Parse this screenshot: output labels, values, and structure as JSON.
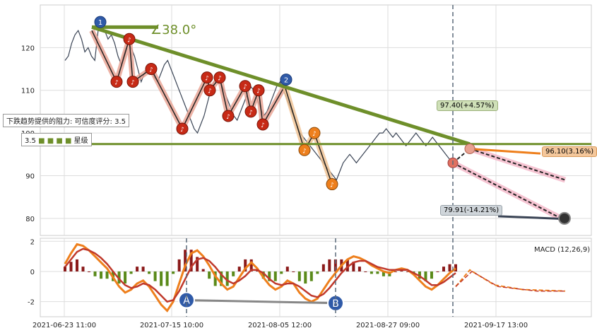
{
  "chart_data": {
    "type": "line",
    "main_panel": {
      "y_ticks": [
        80,
        90,
        100,
        110,
        120
      ],
      "ylim": [
        76,
        130
      ],
      "price_series_y": [
        117,
        118,
        121,
        123,
        124,
        122,
        119,
        120,
        118,
        117,
        124,
        125,
        124,
        122,
        123,
        121,
        118,
        116,
        119,
        121,
        120,
        118,
        115,
        112,
        114,
        116,
        115,
        113,
        112,
        114,
        116,
        117,
        115,
        113,
        111,
        109,
        107,
        105,
        103,
        101,
        100,
        102,
        104,
        107,
        110,
        112,
        113,
        112,
        110,
        108,
        106,
        104,
        103,
        105,
        107,
        109,
        111,
        110,
        108,
        106,
        104,
        105,
        107,
        109,
        111,
        112,
        110,
        108,
        106,
        104,
        102,
        100,
        99,
        98,
        97,
        96,
        95,
        94,
        93,
        92,
        91,
        90,
        89,
        91,
        93,
        94,
        95,
        94,
        93,
        94,
        95,
        96,
        97,
        98,
        99,
        100,
        100,
        101,
        100,
        99,
        100,
        99,
        98,
        97,
        98,
        99,
        100,
        99,
        98,
        97,
        98,
        99,
        98,
        97,
        96,
        95,
        94,
        93,
        94
      ],
      "trend_lines": [
        {
          "from": [
            0.06,
            124.5
          ],
          "to": [
            0.74,
            97.4
          ],
          "color": "#6e8f2a"
        },
        {
          "from": [
            0.0,
            97.4
          ],
          "to": [
            1.0,
            97.4
          ],
          "color": "#6e8f2a"
        }
      ],
      "angle_label": "∠38.0°",
      "annotations": {
        "resistance_text": "下跌趋势提供的阻力: 可信度评分: 3.5",
        "rating_value": "3.5",
        "rating_suffix": "星级",
        "target_up": "97.40(+4.57%)",
        "target_mid": "96.10(3.16%)",
        "target_down": "79.91(-14.21%)"
      },
      "markers": [
        {
          "label": "1",
          "kind": "blue"
        },
        {
          "label": "2",
          "kind": "blue"
        }
      ]
    },
    "macd_panel": {
      "title": "MACD (12,26,9)",
      "y_ticks": [
        2,
        0,
        -2
      ],
      "ylim": [
        -3,
        2.2
      ],
      "macd_line": [
        0.5,
        1.2,
        1.8,
        1.7,
        1.4,
        1.0,
        0.6,
        0.2,
        -0.4,
        -1.0,
        -1.4,
        -1.2,
        -0.8,
        -0.6,
        -1.0,
        -1.6,
        -2.2,
        -2.6,
        -2.0,
        -0.8,
        0.4,
        1.2,
        1.4,
        1.0,
        0.4,
        -0.3,
        -0.8,
        -1.2,
        -1.0,
        -0.4,
        0.2,
        0.6,
        0.2,
        -0.4,
        -0.9,
        -1.2,
        -1.0,
        -0.6,
        -0.8,
        -1.4,
        -1.8,
        -2.0,
        -1.8,
        -1.2,
        -0.6,
        -0.1,
        0.4,
        0.8,
        1.0,
        0.9,
        0.7,
        0.4,
        0.2,
        0.0,
        -0.1,
        0.1,
        0.2,
        0.1,
        -0.2,
        -0.6,
        -1.0,
        -1.2,
        -0.9,
        -0.5,
        -0.1,
        0.2
      ],
      "signal_line": [
        0.3,
        0.8,
        1.3,
        1.5,
        1.4,
        1.2,
        0.9,
        0.5,
        0.0,
        -0.5,
        -0.9,
        -1.1,
        -1.0,
        -0.8,
        -0.9,
        -1.2,
        -1.6,
        -2.0,
        -1.9,
        -1.3,
        -0.5,
        0.3,
        0.8,
        0.9,
        0.7,
        0.3,
        -0.2,
        -0.6,
        -0.8,
        -0.6,
        -0.3,
        0.1,
        0.1,
        -0.1,
        -0.5,
        -0.8,
        -0.9,
        -0.8,
        -0.8,
        -1.0,
        -1.3,
        -1.6,
        -1.7,
        -1.5,
        -1.1,
        -0.6,
        -0.1,
        0.3,
        0.6,
        0.7,
        0.7,
        0.5,
        0.3,
        0.2,
        0.1,
        0.1,
        0.1,
        0.1,
        -0.1,
        -0.3,
        -0.6,
        -0.9,
        -0.9,
        -0.7,
        -0.4,
        -0.1
      ],
      "divergence": [
        {
          "label": "A"
        },
        {
          "label": "B"
        }
      ]
    },
    "x_ticks": [
      "2021-06-23 11:00",
      "2021-07-15 10:00",
      "2021-08-05 12:00",
      "2021-08-27 09:00",
      "2021-09-17 13:00"
    ],
    "colors": {
      "trend": "#6e8f2a",
      "price": "#3a4455",
      "down_path": "#c0392b",
      "down_path_glow": "#e8a090",
      "orange": "#ee7f1c",
      "blue": "#2f5aa8",
      "pink_glow": "#f4b6c8",
      "macd": "#ee7f1c",
      "signal": "#c0392b",
      "hist_pos": "#8b1a1a",
      "hist_neg": "#5a8a1a"
    }
  }
}
